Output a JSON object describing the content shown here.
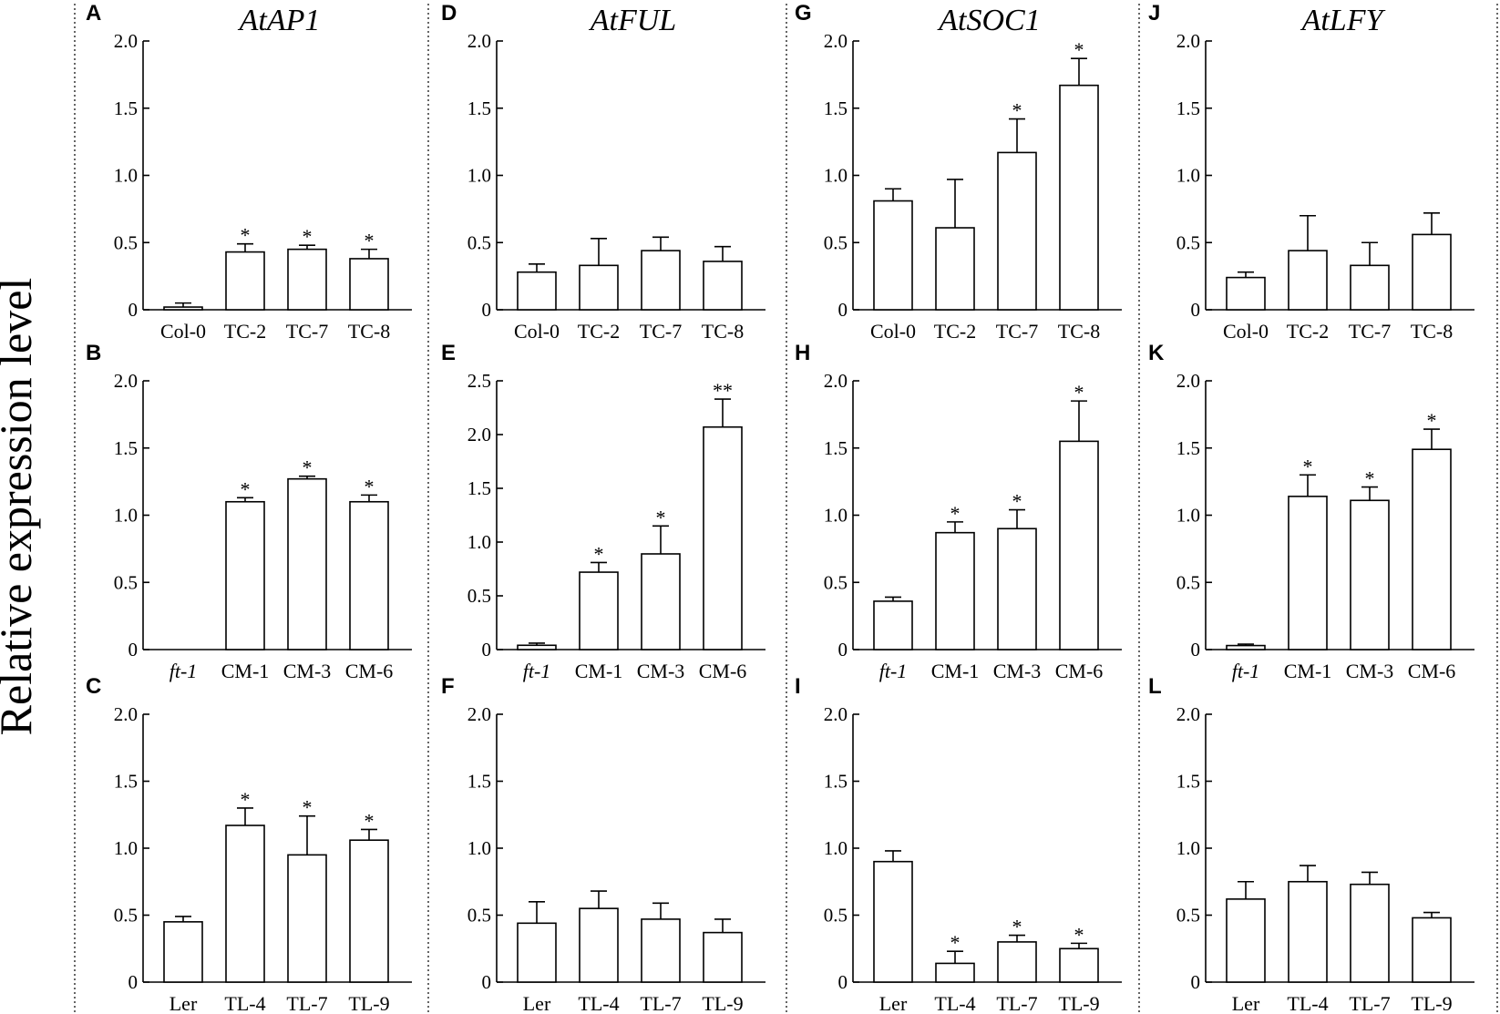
{
  "figure": {
    "ylabel": "Relative expression level",
    "genes": [
      "AtAP1",
      "AtFUL",
      "AtSOC1",
      "AtLFY"
    ]
  },
  "chart_data": [
    {
      "panel": "A",
      "gene": "AtAP1",
      "type": "bar",
      "title": "AtAP1",
      "ylabel": "Relative expression level",
      "categories": [
        "Col-0",
        "TC-2",
        "TC-7",
        "TC-8"
      ],
      "italic_categories": [],
      "values": [
        0.02,
        0.43,
        0.45,
        0.38
      ],
      "errors": [
        0.03,
        0.06,
        0.03,
        0.07
      ],
      "significance": [
        "",
        "*",
        "*",
        "*"
      ],
      "ylim": [
        0,
        2.0
      ],
      "yticks": [
        "0",
        "0.5",
        "1.0",
        "1.5",
        "2.0"
      ],
      "ytick_values": [
        0,
        0.5,
        1.0,
        1.5,
        2.0
      ]
    },
    {
      "panel": "B",
      "gene": "AtAP1",
      "type": "bar",
      "title": "",
      "ylabel": "Relative expression level",
      "categories": [
        "ft-1",
        "CM-1",
        "CM-3",
        "CM-6"
      ],
      "italic_categories": [
        "ft-1"
      ],
      "values": [
        0.0,
        1.1,
        1.27,
        1.1
      ],
      "errors": [
        0,
        0.03,
        0.02,
        0.05
      ],
      "significance": [
        "",
        "*",
        "*",
        "*"
      ],
      "ylim": [
        0,
        2.0
      ],
      "yticks": [
        "0",
        "0.5",
        "1.0",
        "1.5",
        "2.0"
      ],
      "ytick_values": [
        0,
        0.5,
        1.0,
        1.5,
        2.0
      ]
    },
    {
      "panel": "C",
      "gene": "AtAP1",
      "type": "bar",
      "title": "",
      "ylabel": "Relative expression level",
      "categories": [
        "Ler",
        "TL-4",
        "TL-7",
        "TL-9"
      ],
      "italic_categories": [],
      "values": [
        0.45,
        1.17,
        0.95,
        1.06
      ],
      "errors": [
        0.04,
        0.13,
        0.29,
        0.08
      ],
      "significance": [
        "",
        "*",
        "*",
        "*"
      ],
      "ylim": [
        0,
        2.0
      ],
      "yticks": [
        "0",
        "0.5",
        "1.0",
        "1.5",
        "2.0"
      ],
      "ytick_values": [
        0,
        0.5,
        1.0,
        1.5,
        2.0
      ]
    },
    {
      "panel": "D",
      "gene": "AtFUL",
      "type": "bar",
      "title": "AtFUL",
      "ylabel": "Relative expression level",
      "categories": [
        "Col-0",
        "TC-2",
        "TC-7",
        "TC-8"
      ],
      "italic_categories": [],
      "values": [
        0.28,
        0.33,
        0.44,
        0.36
      ],
      "errors": [
        0.06,
        0.2,
        0.1,
        0.11
      ],
      "significance": [
        "",
        "",
        "",
        ""
      ],
      "ylim": [
        0,
        2.0
      ],
      "yticks": [
        "0",
        "0.5",
        "1.0",
        "1.5",
        "2.0"
      ],
      "ytick_values": [
        0,
        0.5,
        1.0,
        1.5,
        2.0
      ]
    },
    {
      "panel": "E",
      "gene": "AtFUL",
      "type": "bar",
      "title": "",
      "ylabel": "Relative expression level",
      "categories": [
        "ft-1",
        "CM-1",
        "CM-3",
        "CM-6"
      ],
      "italic_categories": [
        "ft-1"
      ],
      "values": [
        0.04,
        0.72,
        0.89,
        2.07
      ],
      "errors": [
        0.02,
        0.09,
        0.26,
        0.26
      ],
      "significance": [
        "",
        "*",
        "*",
        "**"
      ],
      "ylim": [
        0,
        2.5
      ],
      "yticks": [
        "0",
        "0.5",
        "1.0",
        "1.5",
        "2.0",
        "2.5"
      ],
      "ytick_values": [
        0,
        0.5,
        1.0,
        1.5,
        2.0,
        2.5
      ]
    },
    {
      "panel": "F",
      "gene": "AtFUL",
      "type": "bar",
      "title": "",
      "ylabel": "Relative expression level",
      "categories": [
        "Ler",
        "TL-4",
        "TL-7",
        "TL-9"
      ],
      "italic_categories": [],
      "values": [
        0.44,
        0.55,
        0.47,
        0.37
      ],
      "errors": [
        0.16,
        0.13,
        0.12,
        0.1
      ],
      "significance": [
        "",
        "",
        "",
        ""
      ],
      "ylim": [
        0,
        2.0
      ],
      "yticks": [
        "0",
        "0.5",
        "1.0",
        "1.5",
        "2.0"
      ],
      "ytick_values": [
        0,
        0.5,
        1.0,
        1.5,
        2.0
      ]
    },
    {
      "panel": "G",
      "gene": "AtSOC1",
      "type": "bar",
      "title": "AtSOC1",
      "ylabel": "Relative expression level",
      "categories": [
        "Col-0",
        "TC-2",
        "TC-7",
        "TC-8"
      ],
      "italic_categories": [],
      "values": [
        0.81,
        0.61,
        1.17,
        1.67
      ],
      "errors": [
        0.09,
        0.36,
        0.25,
        0.2
      ],
      "significance": [
        "",
        "",
        "*",
        "*"
      ],
      "ylim": [
        0,
        2.0
      ],
      "yticks": [
        "0",
        "0.5",
        "1.0",
        "1.5",
        "2.0"
      ],
      "ytick_values": [
        0,
        0.5,
        1.0,
        1.5,
        2.0
      ]
    },
    {
      "panel": "H",
      "gene": "AtSOC1",
      "type": "bar",
      "title": "",
      "ylabel": "Relative expression level",
      "categories": [
        "ft-1",
        "CM-1",
        "CM-3",
        "CM-6"
      ],
      "italic_categories": [
        "ft-1"
      ],
      "values": [
        0.36,
        0.87,
        0.9,
        1.55
      ],
      "errors": [
        0.03,
        0.08,
        0.14,
        0.3
      ],
      "significance": [
        "",
        "*",
        "*",
        "*"
      ],
      "ylim": [
        0,
        2.0
      ],
      "yticks": [
        "0",
        "0.5",
        "1.0",
        "1.5",
        "2.0"
      ],
      "ytick_values": [
        0,
        0.5,
        1.0,
        1.5,
        2.0
      ]
    },
    {
      "panel": "I",
      "gene": "AtSOC1",
      "type": "bar",
      "title": "",
      "ylabel": "Relative expression level",
      "categories": [
        "Ler",
        "TL-4",
        "TL-7",
        "TL-9"
      ],
      "italic_categories": [],
      "values": [
        0.9,
        0.14,
        0.3,
        0.25
      ],
      "errors": [
        0.08,
        0.09,
        0.05,
        0.04
      ],
      "significance": [
        "",
        "*",
        "*",
        "*"
      ],
      "ylim": [
        0,
        2.0
      ],
      "yticks": [
        "0",
        "0.5",
        "1.0",
        "1.5",
        "2.0"
      ],
      "ytick_values": [
        0,
        0.5,
        1.0,
        1.5,
        2.0
      ]
    },
    {
      "panel": "J",
      "gene": "AtLFY",
      "type": "bar",
      "title": "AtLFY",
      "ylabel": "Relative expression level",
      "categories": [
        "Col-0",
        "TC-2",
        "TC-7",
        "TC-8"
      ],
      "italic_categories": [],
      "values": [
        0.24,
        0.44,
        0.33,
        0.56
      ],
      "errors": [
        0.04,
        0.26,
        0.17,
        0.16
      ],
      "significance": [
        "",
        "",
        "",
        ""
      ],
      "ylim": [
        0,
        2.0
      ],
      "yticks": [
        "0",
        "0.5",
        "1.0",
        "1.5",
        "2.0"
      ],
      "ytick_values": [
        0,
        0.5,
        1.0,
        1.5,
        2.0
      ]
    },
    {
      "panel": "K",
      "gene": "AtLFY",
      "type": "bar",
      "title": "",
      "ylabel": "Relative expression level",
      "categories": [
        "ft-1",
        "CM-1",
        "CM-3",
        "CM-6"
      ],
      "italic_categories": [
        "ft-1"
      ],
      "values": [
        0.03,
        1.14,
        1.11,
        1.49
      ],
      "errors": [
        0.01,
        0.16,
        0.1,
        0.15
      ],
      "significance": [
        "",
        "*",
        "*",
        "*"
      ],
      "ylim": [
        0,
        2.0
      ],
      "yticks": [
        "0",
        "0.5",
        "1.0",
        "1.5",
        "2.0"
      ],
      "ytick_values": [
        0,
        0.5,
        1.0,
        1.5,
        2.0
      ]
    },
    {
      "panel": "L",
      "gene": "AtLFY",
      "type": "bar",
      "title": "",
      "ylabel": "Relative expression level",
      "categories": [
        "Ler",
        "TL-4",
        "TL-7",
        "TL-9"
      ],
      "italic_categories": [],
      "values": [
        0.62,
        0.75,
        0.73,
        0.48
      ],
      "errors": [
        0.13,
        0.12,
        0.09,
        0.04
      ],
      "significance": [
        "",
        "",
        "",
        ""
      ],
      "ylim": [
        0,
        2.0
      ],
      "yticks": [
        "0",
        "0.5",
        "1.0",
        "1.5",
        "2.0"
      ],
      "ytick_values": [
        0,
        0.5,
        1.0,
        1.5,
        2.0
      ]
    }
  ]
}
